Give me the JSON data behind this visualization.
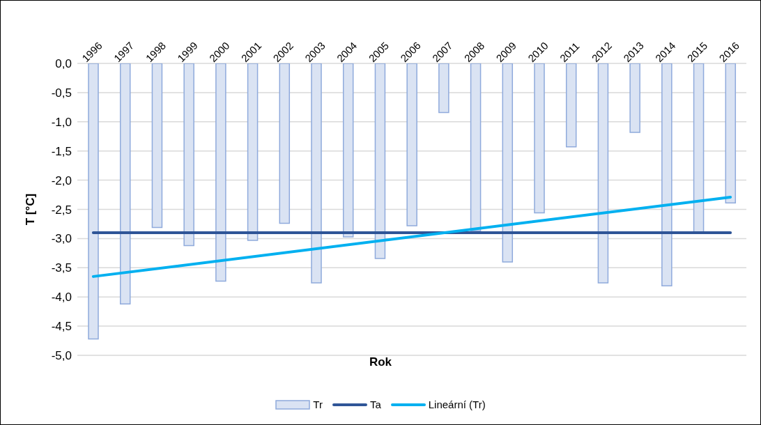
{
  "chart_data": {
    "type": "bar",
    "xlabel": "Rok",
    "ylabel": "T [°C]",
    "categories": [
      "1996",
      "1997",
      "1998",
      "1999",
      "2000",
      "2001",
      "2002",
      "2003",
      "2004",
      "2005",
      "2006",
      "2007",
      "2008",
      "2009",
      "2010",
      "2011",
      "2012",
      "2013",
      "2014",
      "2015",
      "2016"
    ],
    "series": [
      {
        "name": "Tr",
        "color": "#dae3f3",
        "values": [
          -4.72,
          -4.12,
          -2.81,
          -3.12,
          -3.73,
          -3.03,
          -2.74,
          -3.76,
          -2.97,
          -3.34,
          -2.78,
          -0.84,
          -2.87,
          -3.4,
          -2.56,
          -1.43,
          -3.76,
          -1.18,
          -3.81,
          -2.89,
          -2.39
        ]
      },
      {
        "name": "Ta",
        "type": "line",
        "color": "#2f5597",
        "values": [
          -2.9,
          -2.9,
          -2.9,
          -2.9,
          -2.9,
          -2.9,
          -2.9,
          -2.9,
          -2.9,
          -2.9,
          -2.9,
          -2.9,
          -2.9,
          -2.9,
          -2.9,
          -2.9,
          -2.9,
          -2.9,
          -2.9,
          -2.9,
          -2.9
        ]
      },
      {
        "name": "Lineární (Tr)",
        "type": "line",
        "color": "#00b0f0",
        "values": [
          -3.65,
          null,
          null,
          null,
          null,
          null,
          null,
          null,
          null,
          null,
          null,
          null,
          null,
          null,
          null,
          null,
          null,
          null,
          null,
          null,
          -2.29
        ]
      }
    ],
    "ylim": [
      -5,
      0
    ],
    "yticks": [
      {
        "value": -5,
        "label": "-5,0"
      },
      {
        "value": -4.5,
        "label": "-4,5"
      },
      {
        "value": -4,
        "label": "-4,0"
      },
      {
        "value": -3.5,
        "label": "-3,5"
      },
      {
        "value": -3,
        "label": "-3,0"
      },
      {
        "value": -2.5,
        "label": "-2,5"
      },
      {
        "value": -2,
        "label": "-2,0"
      },
      {
        "value": -1.5,
        "label": "-1,5"
      },
      {
        "value": -1,
        "label": "-1,0"
      },
      {
        "value": -0.5,
        "label": "-0,5"
      },
      {
        "value": 0,
        "label": "0,0"
      }
    ],
    "grid": "y",
    "legend": "bottom",
    "marker": "none",
    "line_style": "solid"
  }
}
